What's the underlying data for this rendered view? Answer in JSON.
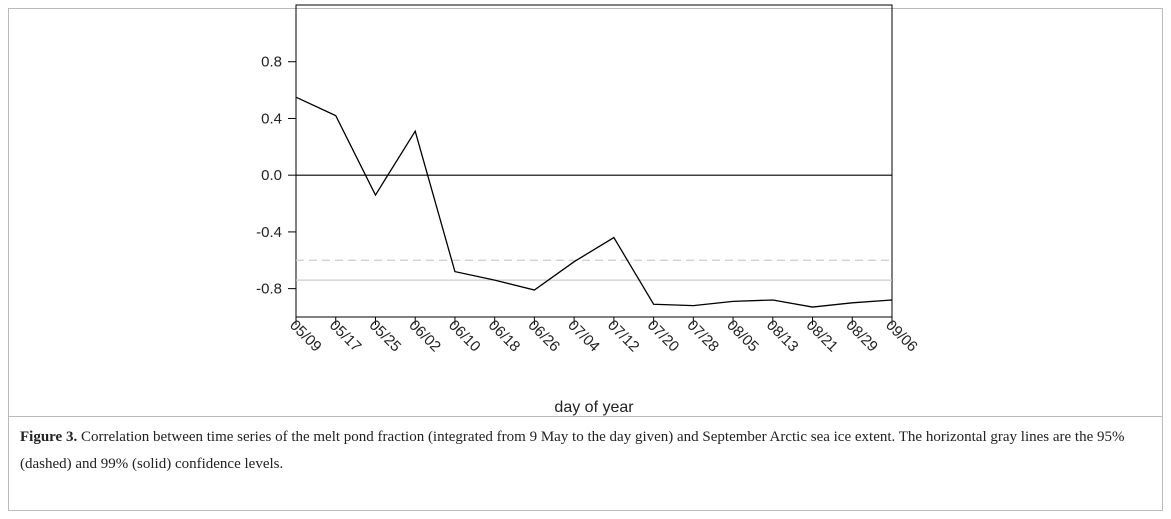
{
  "chart_data": {
    "type": "line",
    "xlabel": "day of year",
    "categories": [
      "05/09",
      "05/17",
      "05/25",
      "06/02",
      "06/10",
      "06/18",
      "06/26",
      "07/04",
      "07/12",
      "07/20",
      "07/28",
      "08/05",
      "08/13",
      "08/21",
      "08/29",
      "09/06"
    ],
    "series": [
      {
        "color": "#000000",
        "values": [
          0.55,
          0.42,
          -0.14,
          0.31,
          -0.68,
          -0.74,
          -0.81,
          -0.61,
          -0.44,
          -0.91,
          -0.92,
          -0.89,
          -0.88,
          -0.93,
          -0.9,
          -0.88
        ]
      }
    ],
    "ylim": [
      -1.0,
      1.2
    ],
    "yticks": [
      -0.8,
      -0.4,
      {
        "value": 0,
        "label": "0.0"
      },
      0.4,
      0.8
    ],
    "reference_lines": [
      {
        "value": 0,
        "color": "#000000",
        "style": "solid"
      },
      {
        "value": -0.6,
        "color": "#cccccc",
        "style": "dashed"
      },
      {
        "value": -0.74,
        "color": "#cccccc",
        "style": "solid"
      }
    ]
  },
  "caption": {
    "label": "Figure 3.",
    "text": "Correlation between time series of the melt pond fraction (integrated from 9 May to the day given) and September Arctic sea ice extent. The horizontal gray lines are the 95% (dashed) and 99% (solid) confidence levels."
  }
}
